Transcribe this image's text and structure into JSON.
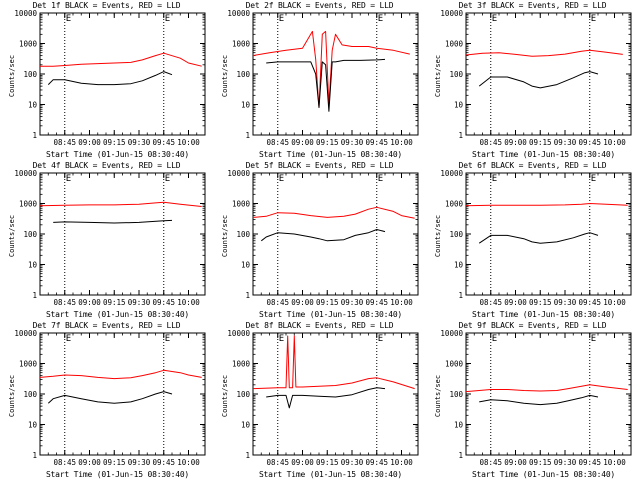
{
  "chart_data": [
    {
      "type": "line",
      "title": "Det 1f BLACK = Events, RED = LLD",
      "xlabel": "Start Time (01-Jun-15 08:30:40)",
      "ylabel": "Counts/sec",
      "x_ticks": [
        "08:45",
        "09:00",
        "09:15",
        "09:30",
        "09:45",
        "10:00"
      ],
      "y_ticks": [
        "1",
        "10",
        "100",
        "1000",
        "10000"
      ],
      "ylim": [
        1,
        10000
      ],
      "xlim": [
        "08:30",
        "10:10"
      ],
      "yscale": "log",
      "marker_labels": [
        "E",
        "E"
      ],
      "markers_x": [
        "08:45",
        "09:45"
      ],
      "series": [
        {
          "name": "RED = LLD",
          "color": "#ff0000",
          "x": [
            "08:30",
            "08:38",
            "08:45",
            "08:55",
            "09:05",
            "09:15",
            "09:25",
            "09:32",
            "09:40",
            "09:45",
            "09:55",
            "10:00",
            "10:08"
          ],
          "values": [
            180,
            180,
            190,
            210,
            220,
            230,
            240,
            290,
            400,
            480,
            330,
            230,
            180
          ]
        },
        {
          "name": "BLACK = Events",
          "color": "#000000",
          "x": [
            "08:35",
            "08:38",
            "08:45",
            "08:55",
            "09:05",
            "09:15",
            "09:25",
            "09:32",
            "09:40",
            "09:45",
            "09:50"
          ],
          "values": [
            45,
            65,
            65,
            50,
            45,
            45,
            48,
            60,
            90,
            120,
            95
          ]
        }
      ]
    },
    {
      "type": "line",
      "title": "Det 2f BLACK = Events, RED = LLD",
      "xlabel": "Start Time (01-Jun-15 08:30:40)",
      "ylabel": "Counts/sec",
      "x_ticks": [
        "08:45",
        "09:00",
        "09:15",
        "09:30",
        "09:45",
        "10:00"
      ],
      "y_ticks": [
        "1",
        "10",
        "100",
        "1000",
        "10000"
      ],
      "ylim": [
        1,
        10000
      ],
      "xlim": [
        "08:30",
        "10:10"
      ],
      "yscale": "log",
      "marker_labels": [
        "E",
        "E"
      ],
      "markers_x": [
        "08:45",
        "09:45"
      ],
      "series": [
        {
          "name": "RED = LLD",
          "color": "#ff0000",
          "x": [
            "08:30",
            "08:40",
            "08:50",
            "09:00",
            "09:06",
            "09:08",
            "09:10",
            "09:12",
            "09:14",
            "09:16",
            "09:18",
            "09:20",
            "09:24",
            "09:30",
            "09:40",
            "09:45",
            "09:55",
            "10:05"
          ],
          "values": [
            400,
            500,
            600,
            700,
            2500,
            300,
            8,
            2000,
            2500,
            10,
            600,
            2000,
            900,
            800,
            800,
            700,
            600,
            450
          ]
        },
        {
          "name": "BLACK = Events",
          "color": "#000000",
          "x": [
            "08:38",
            "08:45",
            "08:55",
            "09:05",
            "09:08",
            "09:10",
            "09:12",
            "09:14",
            "09:16",
            "09:18",
            "09:20",
            "09:25",
            "09:35",
            "09:45",
            "09:50"
          ],
          "values": [
            230,
            250,
            250,
            250,
            100,
            8,
            250,
            200,
            6,
            250,
            250,
            280,
            280,
            290,
            300
          ]
        }
      ]
    },
    {
      "type": "line",
      "title": "Det 3f BLACK = Events, RED = LLD",
      "xlabel": "Start Time (01-Jun-15 08:30:40)",
      "ylabel": "Counts/sec",
      "x_ticks": [
        "08:45",
        "09:00",
        "09:15",
        "09:30",
        "09:45",
        "10:00"
      ],
      "y_ticks": [
        "1",
        "10",
        "100",
        "1000",
        "10000"
      ],
      "ylim": [
        1,
        10000
      ],
      "xlim": [
        "08:30",
        "10:10"
      ],
      "yscale": "log",
      "marker_labels": [
        "E",
        "E"
      ],
      "markers_x": [
        "08:45",
        "09:45"
      ],
      "series": [
        {
          "name": "RED = LLD",
          "color": "#ff0000",
          "x": [
            "08:30",
            "08:40",
            "08:50",
            "09:00",
            "09:10",
            "09:20",
            "09:30",
            "09:40",
            "09:45",
            "09:55",
            "10:05"
          ],
          "values": [
            420,
            480,
            500,
            440,
            380,
            400,
            450,
            560,
            600,
            520,
            440
          ]
        },
        {
          "name": "BLACK = Events",
          "color": "#000000",
          "x": [
            "08:38",
            "08:45",
            "08:55",
            "09:05",
            "09:10",
            "09:15",
            "09:25",
            "09:35",
            "09:42",
            "09:45",
            "09:50"
          ],
          "values": [
            40,
            80,
            80,
            55,
            40,
            35,
            45,
            75,
            110,
            120,
            100
          ]
        }
      ]
    },
    {
      "type": "line",
      "title": "Det 4f BLACK = Events, RED = LLD",
      "xlabel": "Start Time (01-Jun-15 08:30:40)",
      "ylabel": "Counts/sec",
      "x_ticks": [
        "08:45",
        "09:00",
        "09:15",
        "09:30",
        "09:45",
        "10:00"
      ],
      "y_ticks": [
        "1",
        "10",
        "100",
        "1000",
        "10000"
      ],
      "ylim": [
        1,
        10000
      ],
      "xlim": [
        "08:30",
        "10:10"
      ],
      "yscale": "log",
      "marker_labels": [
        "E",
        "E"
      ],
      "markers_x": [
        "08:45",
        "09:45"
      ],
      "series": [
        {
          "name": "RED = LLD",
          "color": "#ff0000",
          "x": [
            "08:30",
            "08:45",
            "09:00",
            "09:15",
            "09:30",
            "09:40",
            "09:45",
            "09:55",
            "10:08"
          ],
          "values": [
            850,
            880,
            900,
            900,
            950,
            1050,
            1100,
            950,
            800
          ]
        },
        {
          "name": "BLACK = Events",
          "color": "#000000",
          "x": [
            "08:38",
            "08:45",
            "09:00",
            "09:15",
            "09:30",
            "09:45",
            "09:50"
          ],
          "values": [
            240,
            250,
            240,
            230,
            240,
            270,
            280
          ]
        }
      ]
    },
    {
      "type": "line",
      "title": "Det 5f BLACK = Events, RED = LLD",
      "xlabel": "Start Time (01-Jun-15 08:30:40)",
      "ylabel": "Counts/sec",
      "x_ticks": [
        "08:45",
        "09:00",
        "09:15",
        "09:30",
        "09:45",
        "10:00"
      ],
      "y_ticks": [
        "1",
        "10",
        "100",
        "1000",
        "10000"
      ],
      "ylim": [
        1,
        10000
      ],
      "xlim": [
        "08:30",
        "10:10"
      ],
      "yscale": "log",
      "marker_labels": [
        "E",
        "E"
      ],
      "markers_x": [
        "08:45",
        "09:45"
      ],
      "series": [
        {
          "name": "RED = LLD",
          "color": "#ff0000",
          "x": [
            "08:30",
            "08:38",
            "08:45",
            "08:55",
            "09:05",
            "09:15",
            "09:25",
            "09:32",
            "09:40",
            "09:45",
            "09:55",
            "10:00",
            "10:08"
          ],
          "values": [
            350,
            380,
            500,
            480,
            400,
            350,
            380,
            450,
            650,
            750,
            550,
            400,
            330
          ]
        },
        {
          "name": "BLACK = Events",
          "color": "#000000",
          "x": [
            "08:35",
            "08:38",
            "08:45",
            "08:55",
            "09:05",
            "09:10",
            "09:15",
            "09:25",
            "09:32",
            "09:40",
            "09:45",
            "09:50"
          ],
          "values": [
            60,
            80,
            110,
            100,
            80,
            70,
            60,
            65,
            90,
            110,
            140,
            120
          ]
        }
      ]
    },
    {
      "type": "line",
      "title": "Det 6f BLACK = Events, RED = LLD",
      "xlabel": "Start Time (01-Jun-15 08:30:40)",
      "ylabel": "Counts/sec",
      "x_ticks": [
        "08:45",
        "09:00",
        "09:15",
        "09:30",
        "09:45",
        "10:00"
      ],
      "y_ticks": [
        "1",
        "10",
        "100",
        "1000",
        "10000"
      ],
      "ylim": [
        1,
        10000
      ],
      "xlim": [
        "08:30",
        "10:10"
      ],
      "yscale": "log",
      "marker_labels": [
        "E",
        "E"
      ],
      "markers_x": [
        "08:45",
        "09:45"
      ],
      "series": [
        {
          "name": "RED = LLD",
          "color": "#ff0000",
          "x": [
            "08:30",
            "08:45",
            "09:00",
            "09:15",
            "09:30",
            "09:40",
            "09:45",
            "09:55",
            "10:08"
          ],
          "values": [
            850,
            880,
            880,
            870,
            900,
            950,
            1000,
            950,
            880
          ]
        },
        {
          "name": "BLACK = Events",
          "color": "#000000",
          "x": [
            "08:38",
            "08:45",
            "08:55",
            "09:05",
            "09:10",
            "09:15",
            "09:25",
            "09:35",
            "09:42",
            "09:45",
            "09:50"
          ],
          "values": [
            50,
            90,
            90,
            70,
            55,
            50,
            55,
            75,
            100,
            110,
            90
          ]
        }
      ]
    },
    {
      "type": "line",
      "title": "Det 7f BLACK = Events, RED = LLD",
      "xlabel": "Start Time (01-Jun-15 08:30:40)",
      "ylabel": "Counts/sec",
      "x_ticks": [
        "08:45",
        "09:00",
        "09:15",
        "09:30",
        "09:45",
        "10:00"
      ],
      "y_ticks": [
        "1",
        "10",
        "100",
        "1000",
        "10000"
      ],
      "ylim": [
        1,
        10000
      ],
      "xlim": [
        "08:30",
        "10:10"
      ],
      "yscale": "log",
      "marker_labels": [
        "E",
        "E"
      ],
      "markers_x": [
        "08:45",
        "09:45"
      ],
      "series": [
        {
          "name": "RED = LLD",
          "color": "#ff0000",
          "x": [
            "08:30",
            "08:38",
            "08:45",
            "08:55",
            "09:05",
            "09:15",
            "09:25",
            "09:32",
            "09:40",
            "09:45",
            "09:55",
            "10:00",
            "10:08"
          ],
          "values": [
            350,
            380,
            420,
            400,
            350,
            320,
            340,
            400,
            500,
            600,
            500,
            420,
            350
          ]
        },
        {
          "name": "BLACK = Events",
          "color": "#000000",
          "x": [
            "08:35",
            "08:38",
            "08:45",
            "08:55",
            "09:05",
            "09:15",
            "09:25",
            "09:32",
            "09:40",
            "09:45",
            "09:50"
          ],
          "values": [
            50,
            70,
            90,
            70,
            55,
            50,
            55,
            70,
            100,
            120,
            100
          ]
        }
      ]
    },
    {
      "type": "line",
      "title": "Det 8f BLACK = Events, RED = LLD",
      "xlabel": "Start Time (01-Jun-15 08:30:40)",
      "ylabel": "Counts/sec",
      "x_ticks": [
        "08:45",
        "09:00",
        "09:15",
        "09:30",
        "09:45",
        "10:00"
      ],
      "y_ticks": [
        "1",
        "10",
        "100",
        "1000",
        "10000"
      ],
      "ylim": [
        1,
        10000
      ],
      "xlim": [
        "08:30",
        "10:10"
      ],
      "yscale": "log",
      "marker_labels": [
        "E",
        "E"
      ],
      "markers_x": [
        "08:45",
        "09:45"
      ],
      "series": [
        {
          "name": "RED = LLD",
          "color": "#ff0000",
          "x": [
            "08:30",
            "08:45",
            "08:50",
            "08:51",
            "08:52",
            "08:54",
            "08:55",
            "08:56",
            "09:00",
            "09:10",
            "09:20",
            "09:30",
            "09:40",
            "09:45",
            "09:55",
            "10:08"
          ],
          "values": [
            150,
            160,
            160,
            8000,
            160,
            160,
            8000,
            170,
            170,
            180,
            190,
            230,
            320,
            340,
            250,
            150
          ]
        },
        {
          "name": "BLACK = Events",
          "color": "#000000",
          "x": [
            "08:38",
            "08:45",
            "08:50",
            "08:52",
            "08:54",
            "09:00",
            "09:10",
            "09:20",
            "09:30",
            "09:40",
            "09:45",
            "09:50"
          ],
          "values": [
            80,
            90,
            90,
            35,
            90,
            90,
            85,
            80,
            95,
            140,
            160,
            150
          ]
        }
      ]
    },
    {
      "type": "line",
      "title": "Det 9f BLACK = Events, RED = LLD",
      "xlabel": "Start Time (01-Jun-15 08:30:40)",
      "ylabel": "Counts/sec",
      "x_ticks": [
        "08:45",
        "09:00",
        "09:15",
        "09:30",
        "09:45",
        "10:00"
      ],
      "y_ticks": [
        "1",
        "10",
        "100",
        "1000",
        "10000"
      ],
      "ylim": [
        1,
        10000
      ],
      "xlim": [
        "08:30",
        "10:10"
      ],
      "yscale": "log",
      "marker_labels": [
        "E",
        "E"
      ],
      "markers_x": [
        "08:45",
        "09:45"
      ],
      "series": [
        {
          "name": "RED = LLD",
          "color": "#ff0000",
          "x": [
            "08:30",
            "08:45",
            "08:55",
            "09:05",
            "09:15",
            "09:25",
            "09:32",
            "09:40",
            "09:45",
            "09:55",
            "10:08"
          ],
          "values": [
            120,
            140,
            140,
            130,
            125,
            130,
            150,
            180,
            200,
            170,
            140
          ]
        },
        {
          "name": "BLACK = Events",
          "color": "#000000",
          "x": [
            "08:38",
            "08:45",
            "08:55",
            "09:05",
            "09:15",
            "09:25",
            "09:32",
            "09:40",
            "09:45",
            "09:50"
          ],
          "values": [
            55,
            65,
            60,
            50,
            45,
            50,
            60,
            75,
            90,
            80
          ]
        }
      ]
    }
  ]
}
